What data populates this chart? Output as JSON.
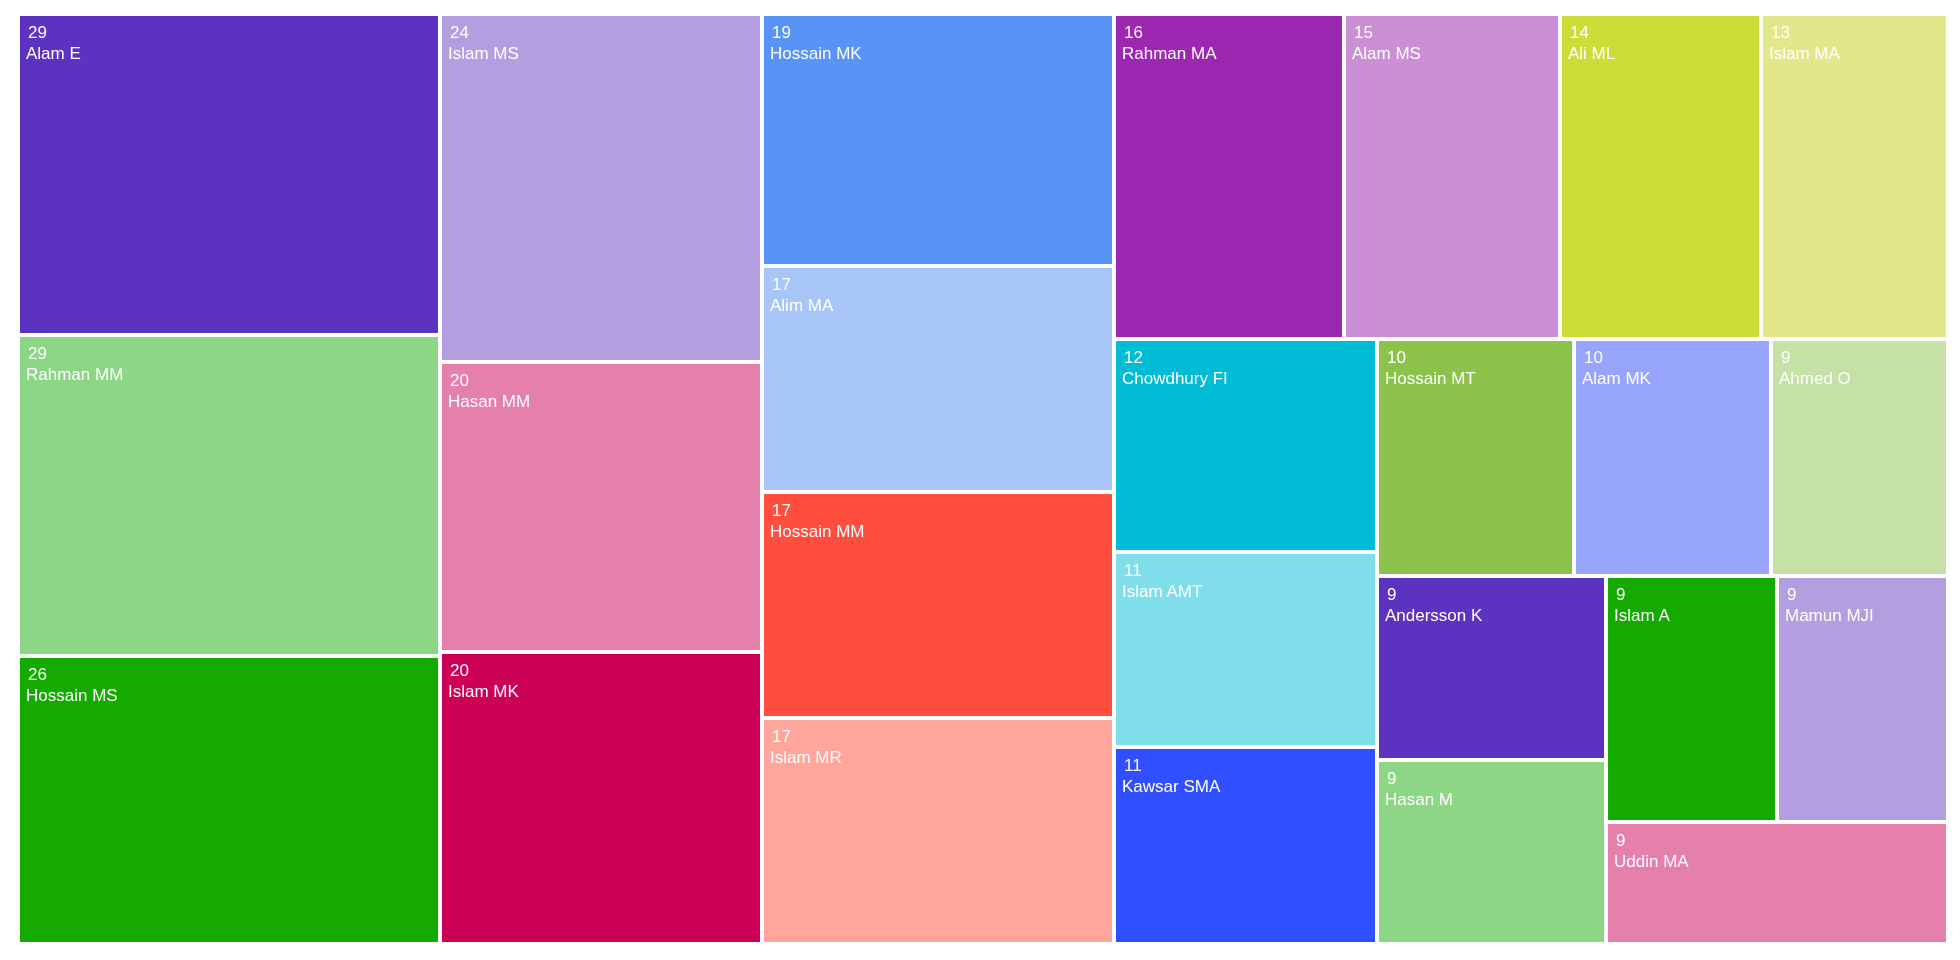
{
  "chart_data": {
    "type": "other",
    "data_labels": true,
    "categories": [
      "Alam E",
      "Rahman MM",
      "Hossain MS",
      "Islam MS",
      "Hasan MM",
      "Islam MK",
      "Hossain MK",
      "Alim MA",
      "Hossain MM",
      "Islam MR",
      "Rahman MA",
      "Alam MS",
      "Ali ML",
      "Islam MA",
      "Chowdhury FI",
      "Islam AMT",
      "Kawsar SMA",
      "Hossain MT",
      "Alam MK",
      "Ahmed O",
      "Andersson K",
      "Hasan M",
      "Islam A",
      "Mamun MJI",
      "Uddin MA"
    ],
    "values": [
      29,
      29,
      26,
      24,
      20,
      20,
      19,
      17,
      17,
      17,
      16,
      15,
      14,
      13,
      12,
      11,
      11,
      10,
      10,
      9,
      9,
      9,
      9,
      9,
      9
    ],
    "colors": [
      "#5c33c1",
      "#8dd685",
      "#14aa00",
      "#b39ee0",
      "#e57fab",
      "#cc0055",
      "#5794f5",
      "#a8c5f7",
      "#ff4e3e",
      "#ffa59c",
      "#9c27b0",
      "#ca8fd5",
      "#cddc39",
      "#e2e88a",
      "#00bcd4",
      "#80deea",
      "#304ffe",
      "#8bc34a",
      "#97a5fd",
      "#c5e1a5",
      "#5c33c1",
      "#8dd685",
      "#14aa00",
      "#b39ee0",
      "#e57fab"
    ]
  }
}
